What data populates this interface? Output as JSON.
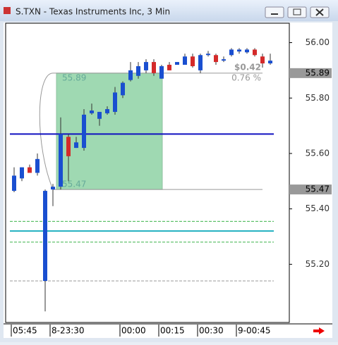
{
  "window": {
    "title": "S.TXN - Texas Instruments Inc, 3 Min"
  },
  "chart_data": {
    "type": "candlestick",
    "categories": [
      "05:45",
      null,
      null,
      null,
      null,
      "8-23:30",
      null,
      null,
      null,
      null,
      null,
      null,
      null,
      null,
      "00:00",
      null,
      null,
      null,
      null,
      "00:15",
      null,
      null,
      null,
      null,
      "00:30",
      null,
      null,
      null,
      null,
      "9-00:45",
      null,
      null,
      null,
      null
    ],
    "open": [
      55.465,
      55.51,
      55.55,
      55.53,
      55.14,
      55.47,
      55.48,
      55.66,
      55.62,
      55.62,
      55.745,
      55.725,
      55.745,
      55.75,
      55.81,
      55.865,
      55.88,
      55.9,
      55.93,
      55.87,
      55.92,
      55.92,
      55.92,
      55.95,
      55.9,
      55.955,
      55.955,
      55.935,
      55.955,
      55.968,
      55.965,
      55.975,
      55.95,
      55.925
    ],
    "high": [
      55.55,
      55.55,
      55.56,
      55.6,
      55.47,
      55.49,
      55.73,
      55.67,
      55.66,
      55.76,
      55.78,
      55.75,
      55.77,
      55.84,
      55.86,
      55.93,
      55.93,
      55.94,
      55.94,
      55.92,
      55.93,
      55.93,
      55.96,
      55.96,
      55.96,
      55.97,
      55.96,
      55.95,
      55.98,
      55.98,
      55.98,
      55.98,
      55.96,
      55.96
    ],
    "low": [
      55.46,
      55.5,
      55.53,
      55.52,
      55.03,
      55.41,
      55.47,
      55.5,
      55.62,
      55.61,
      55.74,
      55.7,
      55.74,
      55.74,
      55.8,
      55.86,
      55.87,
      55.89,
      55.88,
      55.87,
      55.9,
      55.92,
      55.92,
      55.91,
      55.89,
      55.95,
      55.92,
      55.93,
      55.95,
      55.96,
      55.96,
      55.95,
      55.91,
      55.92
    ],
    "close": [
      55.52,
      55.55,
      55.53,
      55.58,
      55.465,
      55.48,
      55.67,
      55.59,
      55.64,
      55.74,
      55.755,
      55.75,
      55.76,
      55.82,
      55.855,
      55.9,
      55.915,
      55.93,
      55.89,
      55.915,
      55.9,
      55.93,
      55.95,
      55.915,
      55.955,
      55.96,
      55.93,
      55.94,
      55.975,
      55.975,
      55.975,
      55.955,
      55.925,
      55.935
    ],
    "up_color": "#1a4fd0",
    "down_color": "#d42a2a",
    "ylim": [
      54.99,
      56.07
    ],
    "yticks": [
      {
        "value": 55.2,
        "label": "55.20"
      },
      {
        "value": 55.4,
        "label": "55.40"
      },
      {
        "value": 55.6,
        "label": "55.60"
      },
      {
        "value": 55.8,
        "label": "55.80"
      },
      {
        "value": 56.0,
        "label": "56.00"
      }
    ],
    "levels": [
      {
        "value": 55.67,
        "color": "#1010c0",
        "style": "solid"
      },
      {
        "value": 55.32,
        "color": "#20b0c0",
        "style": "solid"
      },
      {
        "value": 55.355,
        "color": "#3cb44b",
        "style": "dashed"
      },
      {
        "value": 55.28,
        "color": "#3cb44b",
        "style": "dashed"
      },
      {
        "value": 55.14,
        "color": "#999999",
        "style": "dashed"
      }
    ],
    "highlight": {
      "top": 55.89,
      "bottom": 55.47,
      "change_label": "$0.42",
      "percent_label": "0.76 %"
    }
  }
}
